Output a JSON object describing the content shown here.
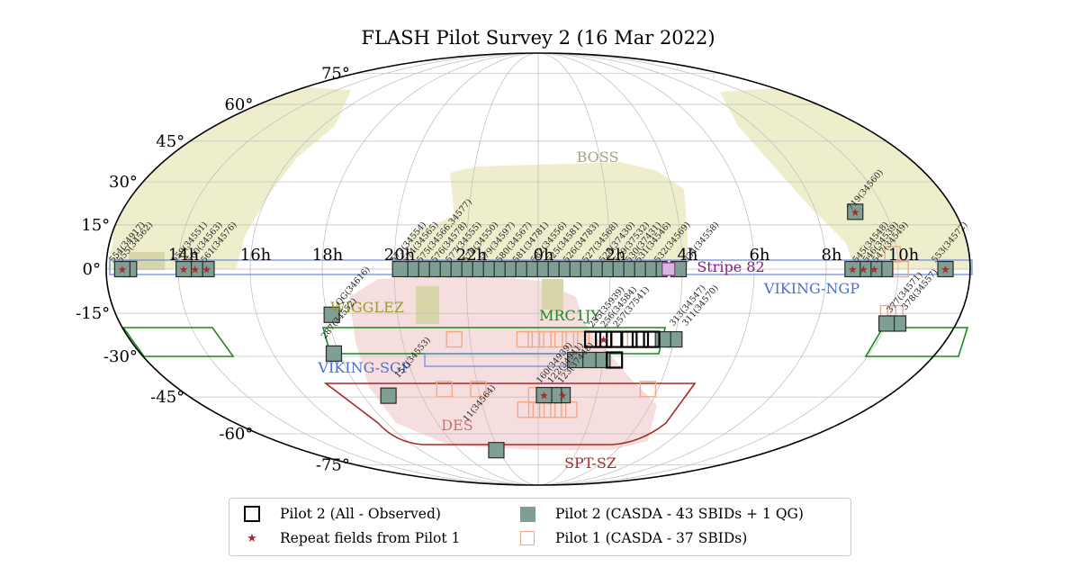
{
  "chart_data": {
    "type": "scatter",
    "title": "FLASH Pilot Survey 2 (16 Mar 2022)",
    "projection": "Mollweide",
    "ra_labels": [
      {
        "text": "10h",
        "ra": 150
      },
      {
        "text": "8h",
        "ra": 120
      },
      {
        "text": "6h",
        "ra": 90
      },
      {
        "text": "4h",
        "ra": 60
      },
      {
        "text": "2h",
        "ra": 30
      },
      {
        "text": "0h",
        "ra": 0
      },
      {
        "text": "22h",
        "ra": 330
      },
      {
        "text": "20h",
        "ra": 300
      },
      {
        "text": "18h",
        "ra": 270
      },
      {
        "text": "16h",
        "ra": 240
      },
      {
        "text": "14h",
        "ra": 210
      }
    ],
    "dec_labels": [
      {
        "text": "75°",
        "dec": 75
      },
      {
        "text": "60°",
        "dec": 60
      },
      {
        "text": "45°",
        "dec": 45
      },
      {
        "text": "30°",
        "dec": 30
      },
      {
        "text": "15°",
        "dec": 15
      },
      {
        "text": "0°",
        "dec": 0
      },
      {
        "text": "-15°",
        "dec": -15
      },
      {
        "text": "-30°",
        "dec": -30
      },
      {
        "text": "-45°",
        "dec": -45
      },
      {
        "text": "-60°",
        "dec": -60
      },
      {
        "text": "-75°",
        "dec": -75
      }
    ],
    "surveys": [
      {
        "name": "BOSS",
        "color": "#a8a27e"
      },
      {
        "name": "Stripe 82",
        "color": "#8b1a8b"
      },
      {
        "name": "VIKING-NGP",
        "color": "#4a6fd1"
      },
      {
        "name": "WIGGLEZ",
        "color": "#9a9a30"
      },
      {
        "name": "MRC1JY",
        "color": "#1a8a1a"
      },
      {
        "name": "VIKING-SGP",
        "color": "#4a6fd1"
      },
      {
        "name": "DES",
        "color": "#c97070"
      },
      {
        "name": "SPT-SZ",
        "color": "#a52a2a"
      }
    ],
    "legend": [
      {
        "label": "Pilot 2 (All - Observed)",
        "symbol": "open-black-square"
      },
      {
        "label": "Pilot 2 (CASDA - 43 SBIDs + 1 QG)",
        "symbol": "filled-teal-square"
      },
      {
        "label": "Repeat fields from Pilot 1",
        "symbol": "red-star"
      },
      {
        "label": "Pilot 1 (CASDA - 37 SBIDs)",
        "symbol": "open-salmon-square"
      }
    ],
    "legend_placement": "bottom-center",
    "colors": {
      "pilot2_fill": "#7f9f95",
      "pilot2_edge": "#000000",
      "pilot1_edge": "#f0a888",
      "star": "#a03030",
      "boss_fill": "#eeeecc",
      "des_fill": "#f7dede"
    },
    "field_labels": [
      {
        "text": "553(34572)",
        "ra": 165.6,
        "dec": 2.0
      },
      {
        "text": "719(34560)",
        "ra": 135.4,
        "dec": 19.8
      },
      {
        "text": "547(34549)",
        "ra": 140.9,
        "dec": 2.0
      },
      {
        "text": "546(34539)",
        "ra": 136.9,
        "dec": 2.0
      },
      {
        "text": "545(34548)",
        "ra": 132.7,
        "dec": 2.0
      },
      {
        "text": "534(34558)",
        "ra": 62.0,
        "dec": 2.0
      },
      {
        "text": "532(34569)",
        "ra": 50.0,
        "dec": 2.0
      },
      {
        "text": "531(34546)",
        "ra": 42.0,
        "dec": 2.0
      },
      {
        "text": "530(37431)",
        "ra": 38.0,
        "dec": 2.0
      },
      {
        "text": "529(37532)",
        "ra": 33.0,
        "dec": 2.0
      },
      {
        "text": "528(37430)",
        "ra": 27.0,
        "dec": 2.0
      },
      {
        "text": "527(34568)",
        "ra": 20.0,
        "dec": 2.0
      },
      {
        "text": "526(34783)",
        "ra": 12.0,
        "dec": 2.0
      },
      {
        "text": "525(34581)",
        "ra": 5.0,
        "dec": 2.0
      },
      {
        "text": "582(34556)",
        "ra": 358.5,
        "dec": 2.0
      },
      {
        "text": "581(34781)",
        "ra": 351.0,
        "dec": 2.0
      },
      {
        "text": "580(34567)",
        "ra": 344.0,
        "dec": 2.0
      },
      {
        "text": "579(34597)",
        "ra": 337.0,
        "dec": 2.0
      },
      {
        "text": "578(34550)",
        "ra": 330.0,
        "dec": 2.0
      },
      {
        "text": "577(34555)",
        "ra": 323.0,
        "dec": 2.0
      },
      {
        "text": "576(34578)",
        "ra": 317.0,
        "dec": 2.0
      },
      {
        "text": "575(34566,34577)",
        "ra": 311.0,
        "dec": 2.0
      },
      {
        "text": "574(34565)",
        "ra": 305.0,
        "dec": 2.0
      },
      {
        "text": "573(34554)",
        "ra": 300.0,
        "dec": 2.0
      },
      {
        "text": "QG(34616)",
        "ra": 276.0,
        "dec": -12.5
      },
      {
        "text": "561(34576)",
        "ra": 221.0,
        "dec": 2.0
      },
      {
        "text": "560(34563)",
        "ra": 215.0,
        "dec": 2.0
      },
      {
        "text": "559(34551)",
        "ra": 208.8,
        "dec": 2.0
      },
      {
        "text": "555(34562)",
        "ra": 186.0,
        "dec": 2.0
      },
      {
        "text": "554(34917)",
        "ra": 182.8,
        "dec": 2.0
      },
      {
        "text": "378(34557)",
        "ra": 156.0,
        "dec": -14.0
      },
      {
        "text": "377(34571)",
        "ra": 150.0,
        "dec": -15.0
      },
      {
        "text": "311(34570)",
        "ra": 64.0,
        "dec": -19.5
      },
      {
        "text": "313(34547)",
        "ra": 58.5,
        "dec": -19.5
      },
      {
        "text": "257(37541)",
        "ra": 34.2,
        "dec": -20.0
      },
      {
        "text": "256(34584)",
        "ra": 28.8,
        "dec": -20.0
      },
      {
        "text": "255(35939)",
        "ra": 23.5,
        "dec": -20.0
      },
      {
        "text": "287(34552)",
        "ra": 266.0,
        "dec": -24.0
      },
      {
        "text": "123(37448)",
        "ra": 11.5,
        "dec": -40.0
      },
      {
        "text": "122(34941)",
        "ra": 6.5,
        "dec": -40.0
      },
      {
        "text": "160(34939)",
        "ra": 1.0,
        "dec": -40.0
      },
      {
        "text": "151(34553)",
        "ra": 292.5,
        "dec": -38.0
      },
      {
        "text": "11(34564)",
        "ra": 318.0,
        "dec": -55.0
      }
    ],
    "pilot2_filled": [
      {
        "ra": 169.7,
        "dec": 0
      },
      {
        "ra": 144.5,
        "dec": 0
      },
      {
        "ra": 140.0,
        "dec": 0
      },
      {
        "ra": 135.5,
        "dec": 0
      },
      {
        "ra": 131.0,
        "dec": 0
      },
      {
        "ra": 137.0,
        "dec": 19.5
      },
      {
        "ra": 58.5,
        "dec": 0
      },
      {
        "ra": 50.5,
        "dec": 0
      },
      {
        "ra": 46.0,
        "dec": 0
      },
      {
        "ra": 41.5,
        "dec": 0
      },
      {
        "ra": 37.0,
        "dec": 0
      },
      {
        "ra": 32.5,
        "dec": 0
      },
      {
        "ra": 28.0,
        "dec": 0
      },
      {
        "ra": 23.5,
        "dec": 0
      },
      {
        "ra": 19.0,
        "dec": 0
      },
      {
        "ra": 14.5,
        "dec": 0
      },
      {
        "ra": 10.0,
        "dec": 0
      },
      {
        "ra": 5.5,
        "dec": 0
      },
      {
        "ra": 1.0,
        "dec": 0
      },
      {
        "ra": 356.5,
        "dec": 0
      },
      {
        "ra": 352.0,
        "dec": 0
      },
      {
        "ra": 347.5,
        "dec": 0
      },
      {
        "ra": 343.0,
        "dec": 0
      },
      {
        "ra": 338.5,
        "dec": 0
      },
      {
        "ra": 334.0,
        "dec": 0
      },
      {
        "ra": 329.5,
        "dec": 0
      },
      {
        "ra": 325.0,
        "dec": 0
      },
      {
        "ra": 320.5,
        "dec": 0
      },
      {
        "ra": 316.0,
        "dec": 0
      },
      {
        "ra": 311.5,
        "dec": 0
      },
      {
        "ra": 307.0,
        "dec": 0
      },
      {
        "ra": 302.5,
        "dec": 0
      },
      {
        "ra": 272.0,
        "dec": -15.5
      },
      {
        "ra": 221.8,
        "dec": 0
      },
      {
        "ra": 217.0,
        "dec": 0
      },
      {
        "ra": 212.3,
        "dec": 0
      },
      {
        "ra": 189.5,
        "dec": 0
      },
      {
        "ra": 186.7,
        "dec": 0
      },
      {
        "ra": 155.0,
        "dec": -18.5
      },
      {
        "ra": 150.0,
        "dec": -18.5
      },
      {
        "ra": 60.0,
        "dec": -24.0
      },
      {
        "ra": 55.0,
        "dec": -24.0
      },
      {
        "ra": 29.5,
        "dec": -31.3
      },
      {
        "ra": 23.0,
        "dec": -31.3
      },
      {
        "ra": 17.0,
        "dec": -31.3
      },
      {
        "ra": 12.5,
        "dec": -44.3
      },
      {
        "ra": 8.0,
        "dec": -44.3
      },
      {
        "ra": 3.0,
        "dec": -44.3
      },
      {
        "ra": 267.5,
        "dec": -29.0
      },
      {
        "ra": 283.0,
        "dec": -44.5
      },
      {
        "ra": 328.0,
        "dec": -67.5
      }
    ],
    "pilot2_open": [
      {
        "ra": 50.0,
        "dec": -24.0
      },
      {
        "ra": 45.0,
        "dec": -24.0
      },
      {
        "ra": 40.0,
        "dec": -24.0
      },
      {
        "ra": 33.6,
        "dec": -24.0
      },
      {
        "ra": 28.8,
        "dec": -24.0
      },
      {
        "ra": 24.0,
        "dec": -24.0
      },
      {
        "ra": 35.0,
        "dec": -31.3
      }
    ],
    "pilot1_open": [
      {
        "ra": 148.0,
        "dec": 5.0
      },
      {
        "ra": 151.0,
        "dec": 0.0
      },
      {
        "ra": 149.0,
        "dec": -15.0
      },
      {
        "ra": 152.0,
        "dec": -15.0
      },
      {
        "ra": 36.0,
        "dec": -24.0
      },
      {
        "ra": 19.0,
        "dec": -24.0
      },
      {
        "ra": 14.0,
        "dec": -24.0
      },
      {
        "ra": 9.0,
        "dec": -24.0
      },
      {
        "ra": 4.0,
        "dec": -24.0
      },
      {
        "ra": 359.0,
        "dec": -24.0
      },
      {
        "ra": 354.0,
        "dec": -24.0
      },
      {
        "ra": 323.0,
        "dec": -24.0
      },
      {
        "ra": 55.0,
        "dec": -42.0
      },
      {
        "ra": 330.0,
        "dec": -42.0
      },
      {
        "ra": 313.0,
        "dec": -42.0
      },
      {
        "ra": 359.0,
        "dec": -44.3
      },
      {
        "ra": 17.0,
        "dec": -50.0
      },
      {
        "ra": 11.0,
        "dec": -50.0
      },
      {
        "ra": 5.0,
        "dec": -50.0
      },
      {
        "ra": 359.0,
        "dec": -50.0
      },
      {
        "ra": 353.0,
        "dec": -50.0
      },
      {
        "ra": 38.5,
        "dec": 0
      }
    ],
    "pilot2_outlined": [
      {
        "ra": 58.5,
        "dec": 0
      },
      {
        "ra": 302.5,
        "dec": 0
      }
    ],
    "repeat_stars": [
      {
        "ra": 169.7,
        "dec": 0
      },
      {
        "ra": 137.0,
        "dec": 19.5
      },
      {
        "ra": 140.0,
        "dec": 0
      },
      {
        "ra": 135.5,
        "dec": 0
      },
      {
        "ra": 131.0,
        "dec": 0
      },
      {
        "ra": 221.8,
        "dec": 0
      },
      {
        "ra": 217.0,
        "dec": 0
      },
      {
        "ra": 212.3,
        "dec": 0
      },
      {
        "ra": 186.7,
        "dec": 0
      },
      {
        "ra": 28.8,
        "dec": -24.0
      },
      {
        "ra": 12.5,
        "dec": -44.3
      },
      {
        "ra": 3.0,
        "dec": -44.3
      }
    ]
  }
}
